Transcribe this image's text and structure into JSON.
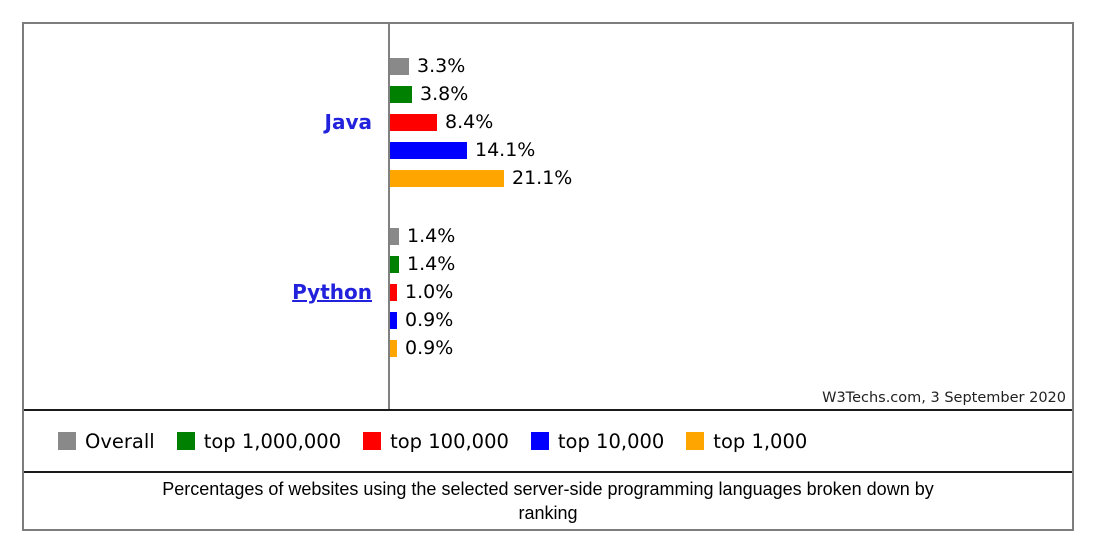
{
  "chart_data": {
    "type": "bar",
    "orientation": "horizontal",
    "unit": "%",
    "caption": "Percentages of websites using the selected server-side programming languages broken down by ranking",
    "attribution": "W3Techs.com, 3 September 2020",
    "categories": [
      {
        "label": "Java",
        "underlined": false
      },
      {
        "label": "Python",
        "underlined": true
      }
    ],
    "series": [
      {
        "name": "Overall",
        "color": "#898989",
        "values": [
          3.3,
          1.4
        ]
      },
      {
        "name": "top 1,000,000",
        "color": "#008000",
        "values": [
          3.8,
          1.4
        ]
      },
      {
        "name": "top 100,000",
        "color": "#ff0000",
        "values": [
          8.4,
          1.0
        ]
      },
      {
        "name": "top 10,000",
        "color": "#0000ff",
        "values": [
          14.1,
          0.9
        ]
      },
      {
        "name": "top 1,000",
        "color": "#ffa500",
        "values": [
          21.1,
          0.9
        ]
      }
    ],
    "value_label_format": "{value}%",
    "legend_position": "bottom",
    "gridlines": false,
    "xlim": [
      0,
      25
    ]
  },
  "colors": {
    "category_link": "#2222dd",
    "axis_line": "#808080"
  }
}
